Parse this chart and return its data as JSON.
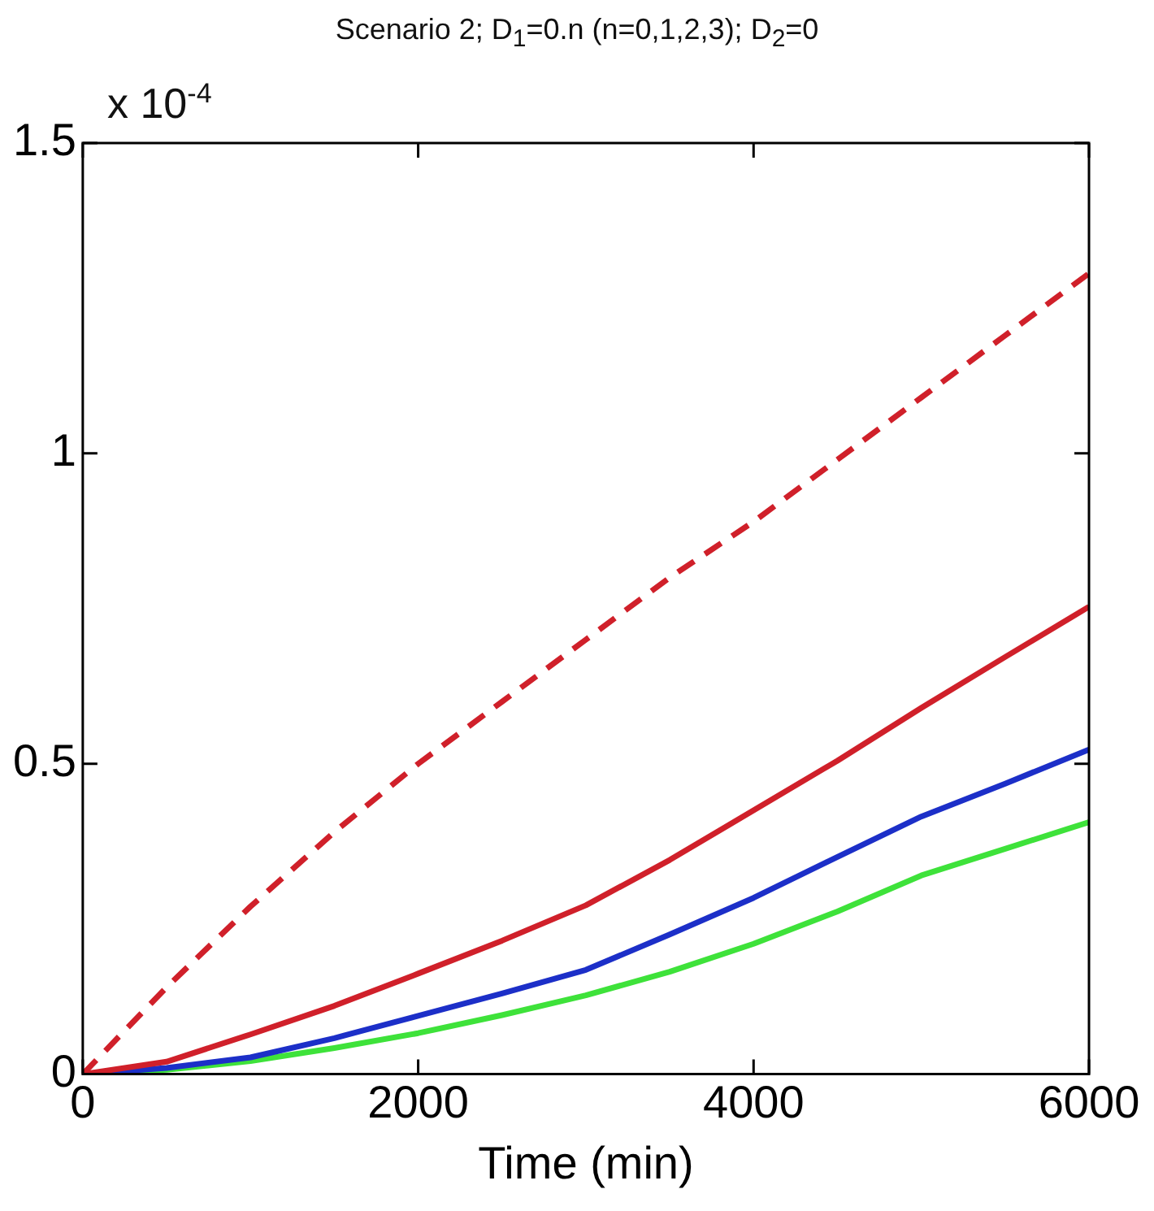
{
  "chart_data": {
    "type": "line",
    "title": "Scenario 2; D$_{1}$=0.n (n=0,1,2,3); D$_{2}$=0",
    "xlabel": "Time (min)",
    "annotations": [
      "x 10$^{-4}$"
    ],
    "x": [
      0,
      500,
      1000,
      1500,
      2000,
      2500,
      3000,
      3500,
      4000,
      4500,
      5000,
      5500,
      6000
    ],
    "series": [
      {
        "color": "#d0202a",
        "line_style": "dashed",
        "values": [
          0,
          0.14,
          0.27,
          0.39,
          0.5,
          0.6,
          0.7,
          0.8,
          0.89,
          0.99,
          1.09,
          1.19,
          1.29
        ]
      },
      {
        "color": "#d0202a",
        "line_style": "solid",
        "values": [
          0,
          0.02,
          0.064,
          0.11,
          0.162,
          0.215,
          0.272,
          0.345,
          0.425,
          0.505,
          0.59,
          0.672,
          0.753
        ]
      },
      {
        "color": "#1c2fc8",
        "line_style": "solid",
        "values": [
          0,
          0.01,
          0.027,
          0.058,
          0.094,
          0.13,
          0.168,
          0.225,
          0.284,
          0.35,
          0.415,
          0.468,
          0.523
        ]
      },
      {
        "color": "#3ee23a",
        "line_style": "solid",
        "values": [
          0,
          0.007,
          0.021,
          0.042,
          0.066,
          0.095,
          0.127,
          0.165,
          0.21,
          0.262,
          0.32,
          0.363,
          0.406
        ]
      }
    ],
    "xlim": [
      0,
      6000
    ],
    "xticks": [
      0,
      2000,
      4000,
      6000
    ],
    "ylim": [
      0,
      1.5
    ],
    "yticks": [
      0,
      0.5,
      1,
      1.5
    ],
    "grid": false,
    "legend": false,
    "marker": "none"
  }
}
